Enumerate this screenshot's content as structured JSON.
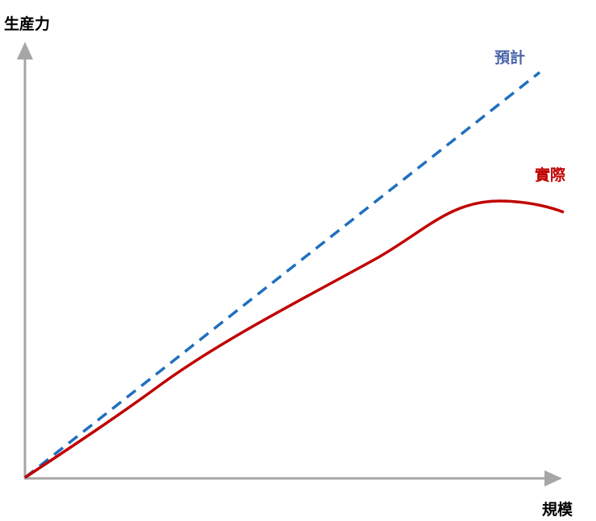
{
  "axes": {
    "y_label": "生産力",
    "x_label": "規模"
  },
  "lines": [
    {
      "label": "預計"
    },
    {
      "label": "實際"
    }
  ]
}
